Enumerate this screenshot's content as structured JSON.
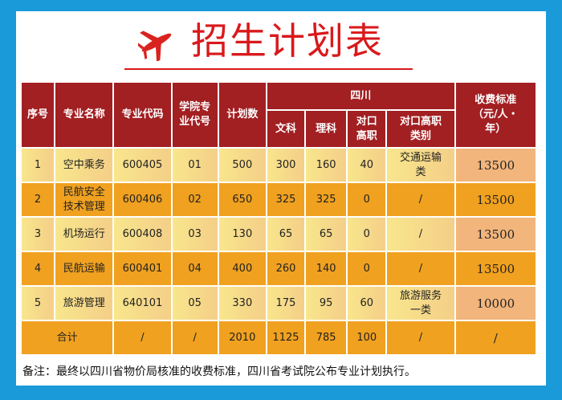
{
  "title": "招生计划表",
  "icons": {
    "plane": "airplane-icon"
  },
  "colors": {
    "header": "#a21f22",
    "title": "#d9191c",
    "row_light": "#f8e68c",
    "row_dark": "#f0a11f",
    "background": "#1a9ad8"
  },
  "table": {
    "headers": {
      "seq": "序号",
      "name": "专业名称",
      "code": "专业代码",
      "college_code": "学院专业代号",
      "plan": "计划数",
      "region": "四川",
      "fee": "收费标准（元/人・年）",
      "wen": "文科",
      "li": "理科",
      "duikou": "对口高职",
      "duikou_type": "对口高职类别"
    },
    "rows": [
      {
        "seq": "1",
        "name": "空中乘务",
        "code": "600405",
        "college_code": "01",
        "plan": "500",
        "wen": "300",
        "li": "160",
        "duikou": "40",
        "duikou_type": "交通运输类",
        "fee": "13500"
      },
      {
        "seq": "2",
        "name": "民航安全技术管理",
        "code": "600406",
        "college_code": "02",
        "plan": "650",
        "wen": "325",
        "li": "325",
        "duikou": "0",
        "duikou_type": "/",
        "fee": "13500"
      },
      {
        "seq": "3",
        "name": "机场运行",
        "code": "600408",
        "college_code": "03",
        "plan": "130",
        "wen": "65",
        "li": "65",
        "duikou": "0",
        "duikou_type": "/",
        "fee": "13500"
      },
      {
        "seq": "4",
        "name": "民航运输",
        "code": "600401",
        "college_code": "04",
        "plan": "400",
        "wen": "260",
        "li": "140",
        "duikou": "0",
        "duikou_type": "/",
        "fee": "13500"
      },
      {
        "seq": "5",
        "name": "旅游管理",
        "code": "640101",
        "college_code": "05",
        "plan": "330",
        "wen": "175",
        "li": "95",
        "duikou": "60",
        "duikou_type": "旅游服务一类",
        "fee": "10000"
      }
    ],
    "total": {
      "label": "合计",
      "code": "/",
      "college_code": "/",
      "plan": "2010",
      "wen": "1125",
      "li": "785",
      "duikou": "100",
      "duikou_type": "/",
      "fee": "/"
    }
  },
  "note": "备注：最终以四川省物价局核准的收费标准，四川省考试院公布专业计划执行。"
}
